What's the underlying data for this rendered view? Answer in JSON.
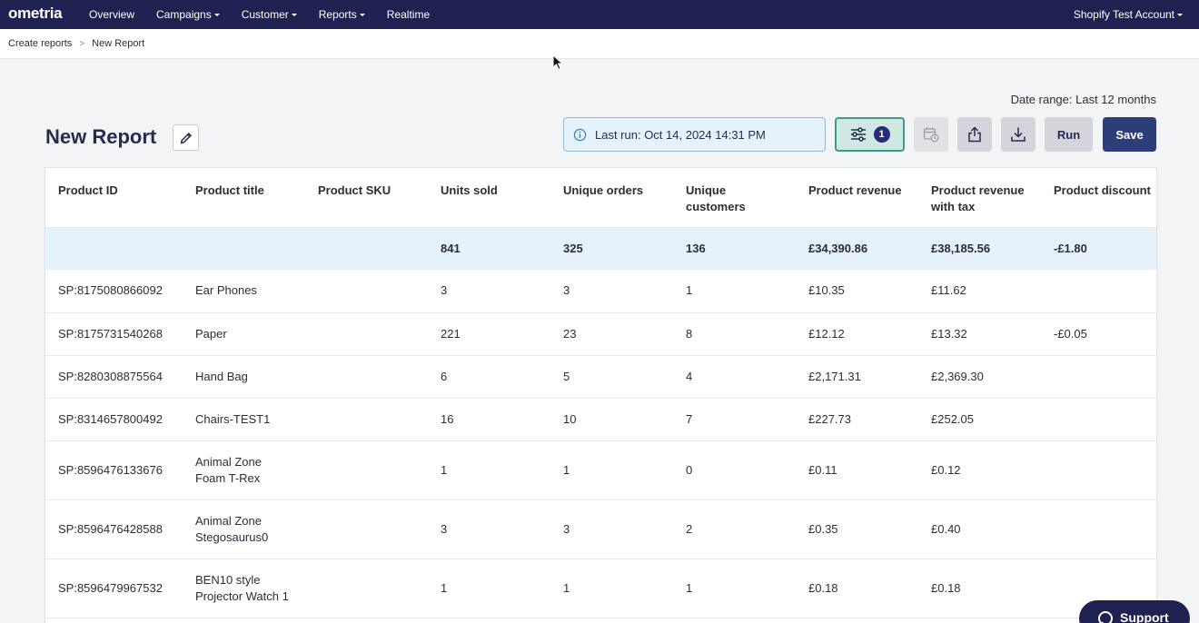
{
  "nav": {
    "logo": "ometria",
    "items": [
      {
        "label": "Overview",
        "dropdown": false
      },
      {
        "label": "Campaigns",
        "dropdown": true
      },
      {
        "label": "Customer",
        "dropdown": true
      },
      {
        "label": "Reports",
        "dropdown": true
      },
      {
        "label": "Realtime",
        "dropdown": false
      }
    ],
    "account": "Shopify Test Account"
  },
  "breadcrumb": {
    "parent": "Create reports",
    "separator": ">",
    "current": "New Report"
  },
  "report": {
    "title": "New Report",
    "date_range": "Date range: Last 12 months",
    "last_run": "Last run: Oct 14, 2024 14:31 PM",
    "filter_count": "1",
    "run_label": "Run",
    "save_label": "Save"
  },
  "table": {
    "columns": [
      [
        "Product ID"
      ],
      [
        "Product title"
      ],
      [
        "Product SKU"
      ],
      [
        "Units sold"
      ],
      [
        "Unique orders"
      ],
      [
        "Unique",
        "customers"
      ],
      [
        "Product revenue"
      ],
      [
        "Product revenue",
        "with tax"
      ],
      [
        "Product discount"
      ]
    ],
    "totals": [
      "",
      "",
      "",
      "841",
      "325",
      "136",
      "£34,390.86",
      "£38,185.56",
      "-£1.80"
    ],
    "rows": [
      {
        "cells": [
          "SP:8175080866092",
          [
            "Ear Phones"
          ],
          "",
          "3",
          "3",
          "1",
          "£10.35",
          "£11.62",
          ""
        ]
      },
      {
        "cells": [
          "SP:8175731540268",
          [
            "Paper"
          ],
          "",
          "221",
          "23",
          "8",
          "£12.12",
          "£13.32",
          "-£0.05"
        ]
      },
      {
        "cells": [
          "SP:8280308875564",
          [
            "Hand Bag"
          ],
          "",
          "6",
          "5",
          "4",
          "£2,171.31",
          "£2,369.30",
          ""
        ]
      },
      {
        "cells": [
          "SP:8314657800492",
          [
            "Chairs-TEST1"
          ],
          "",
          "16",
          "10",
          "7",
          "£227.73",
          "£252.05",
          ""
        ]
      },
      {
        "cells": [
          "SP:8596476133676",
          [
            "Animal Zone",
            "Foam T-Rex"
          ],
          "",
          "1",
          "1",
          "0",
          "£0.11",
          "£0.12",
          ""
        ]
      },
      {
        "cells": [
          "SP:8596476428588",
          [
            "Animal Zone",
            "Stegosaurus0"
          ],
          "",
          "3",
          "3",
          "2",
          "£0.35",
          "£0.40",
          ""
        ]
      },
      {
        "cells": [
          "SP:8596479967532",
          [
            "BEN10 style",
            "Projector Watch 1"
          ],
          "",
          "1",
          "1",
          "1",
          "£0.18",
          "£0.18",
          ""
        ]
      }
    ]
  },
  "support": {
    "label": "Support"
  },
  "icons": {
    "info": "info-icon",
    "filter": "sliders-icon",
    "schedule": "calendar-clock-icon",
    "share": "share-icon",
    "download": "download-icon",
    "edit": "pencil-icon",
    "support": "chat-bubble-icon"
  }
}
